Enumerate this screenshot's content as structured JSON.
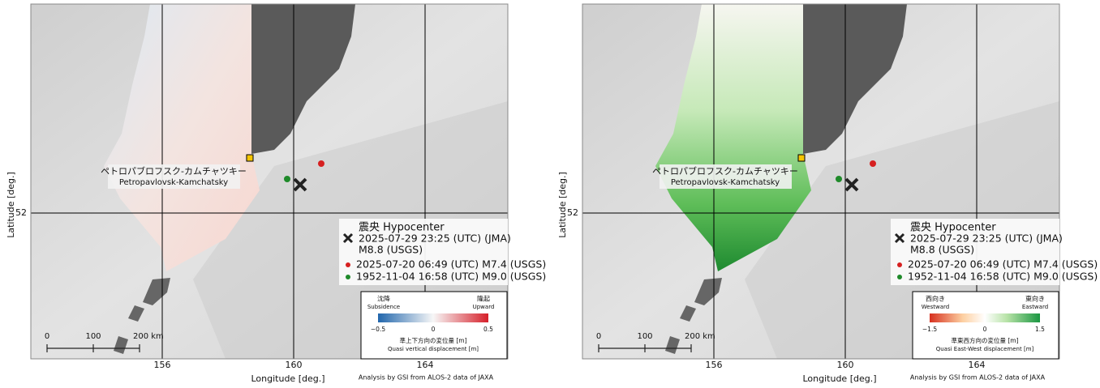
{
  "panels": [
    {
      "x_ticks": [
        "156",
        "160",
        "164"
      ],
      "y_ticks": [
        "52"
      ],
      "x_label": "Longitude [deg.]",
      "y_label": "Latitude [deg.]",
      "city_jp": "ペトロパブロフスク-カムチャツキー",
      "city_en": "Petropavlovsk-Kamchatsky",
      "legend": {
        "title": "震央 Hypocenter",
        "main_line1": "2025-07-29 23:25 (UTC) (JMA)",
        "main_line2": "M8.8 (USGS)",
        "red_item": "2025-07-20 06:49 (UTC) M7.4 (USGS)",
        "green_item": "1952-11-04 16:58 (UTC) M9.0 (USGS)"
      },
      "colorbar": {
        "left_jp": "沈降",
        "left_en": "Subsidence",
        "right_jp": "隆起",
        "right_en": "Upward",
        "ticks": [
          "−0.5",
          "0",
          "0.5"
        ],
        "caption_jp": "準上下方向の変位量 [m]",
        "caption_en": "Quasi vertical displacement [m]"
      },
      "scale": [
        "0",
        "100",
        "200 km"
      ],
      "credit": "Analysis by GSI from ALOS-2 data of JAXA"
    },
    {
      "x_ticks": [
        "156",
        "160",
        "164"
      ],
      "y_ticks": [
        "52"
      ],
      "x_label": "Longitude [deg.]",
      "y_label": "Latitude [deg.]",
      "city_jp": "ペトロパブロフスク-カムチャツキー",
      "city_en": "Petropavlovsk-Kamchatsky",
      "legend": {
        "title": "震央 Hypocenter",
        "main_line1": "2025-07-29 23:25 (UTC) (JMA)",
        "main_line2": "M8.8 (USGS)",
        "red_item": "2025-07-20 06:49 (UTC) M7.4 (USGS)",
        "green_item": "1952-11-04 16:58 (UTC) M9.0 (USGS)"
      },
      "colorbar": {
        "left_jp": "西向き",
        "left_en": "Westward",
        "right_jp": "東向き",
        "right_en": "Eastward",
        "ticks": [
          "−1.5",
          "0",
          "1.5"
        ],
        "caption_jp": "準東西方向の変位量 [m]",
        "caption_en": "Quasi East-West displacement [m]"
      },
      "scale": [
        "0",
        "100",
        "200 km"
      ],
      "credit": "Analysis by GSI from ALOS-2 data of JAXA"
    }
  ]
}
